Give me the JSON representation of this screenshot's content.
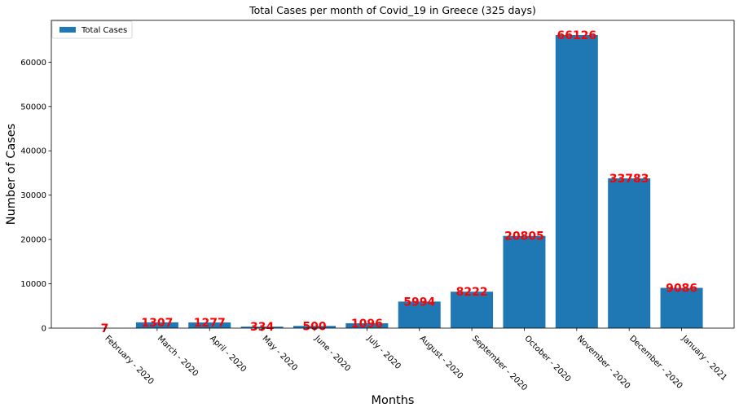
{
  "chart_data": {
    "type": "bar",
    "title": "Total Cases per month of Covid_19 in Greece (325 days)",
    "xlabel": "Months",
    "ylabel": "Number of Cases",
    "categories": [
      "February - 2020",
      "March - 2020",
      "April - 2020",
      "May - 2020",
      "June - 2020",
      "July - 2020",
      "August - 2020",
      "September - 2020",
      "October - 2020",
      "November - 2020",
      "December - 2020",
      "January - 2021"
    ],
    "series": [
      {
        "name": "Total Cases",
        "color": "#1f77b4",
        "values": [
          7,
          1307,
          1277,
          334,
          500,
          1096,
          5994,
          8222,
          20805,
          66126,
          33783,
          9086
        ]
      }
    ],
    "data_label_color": "#ff0000",
    "ylim": [
      0,
      69432
    ],
    "yticks": [
      0,
      10000,
      20000,
      30000,
      40000,
      50000,
      60000
    ],
    "legend_position": "top-left",
    "grid": false
  }
}
